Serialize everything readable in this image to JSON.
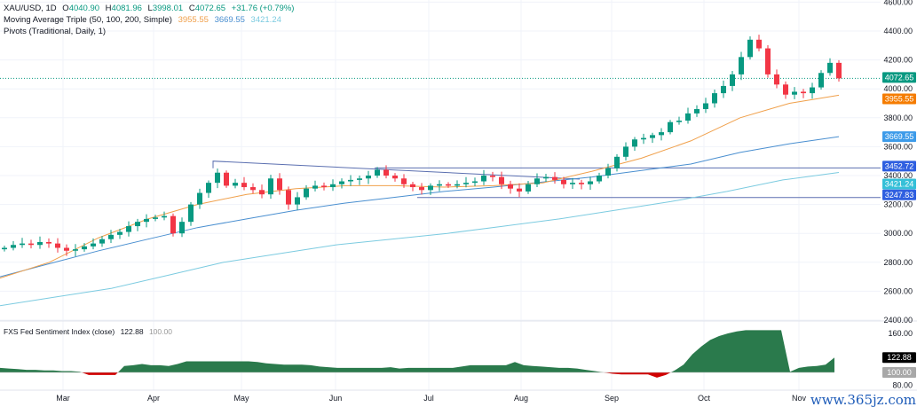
{
  "header": {
    "symbol": "XAU/USD, 1D",
    "o_label": "O",
    "o": "4040.90",
    "h_label": "H",
    "h": "4081.96",
    "l_label": "L",
    "l": "3998.01",
    "c_label": "C",
    "c": "4072.65",
    "change": "+31.76 (+0.79%)",
    "ma_title": "Moving Average Triple (50, 100, 200, Simple)",
    "ma50": "3955.55",
    "ma100": "3669.55",
    "ma200": "3421.24",
    "pivots_title": "Pivots (Traditional, Daily, 1)"
  },
  "indicator": {
    "title": "FXS Fed Sentiment Index (close)",
    "value": "122.88",
    "baseline": "100.00"
  },
  "watermark": "www.365jz.com",
  "colors": {
    "up": "#089981",
    "down": "#f23645",
    "ma50": "#f0a04b",
    "ma100": "#4a8fd0",
    "ma200": "#7ccbe0",
    "pivot": "#5b6fb0",
    "area_pos": "#2a7a4c",
    "area_neg": "#d00000"
  },
  "chart_data": [
    {
      "type": "candlestick",
      "title": "XAU/USD, 1D",
      "x_tick_labels": [
        "Mar",
        "Apr",
        "May",
        "Jun",
        "Jul",
        "Aug",
        "Sep",
        "Oct",
        "Nov"
      ],
      "y_tick_labels": [
        "2400.00",
        "2600.00",
        "2800.00",
        "3000.00",
        "3200.00",
        "3400.00",
        "3600.00",
        "3800.00",
        "4000.00",
        "4200.00",
        "4400.00",
        "4600.00"
      ],
      "ylim": [
        2400,
        4600
      ],
      "grid": true,
      "close": [
        2900,
        2920,
        2930,
        2920,
        2940,
        2930,
        2900,
        2880,
        2890,
        2910,
        2930,
        2960,
        2990,
        3010,
        3050,
        3080,
        3100,
        3110,
        3120,
        3000,
        3080,
        3200,
        3280,
        3350,
        3420,
        3330,
        3350,
        3320,
        3300,
        3270,
        3380,
        3300,
        3200,
        3250,
        3310,
        3330,
        3320,
        3340,
        3360,
        3370,
        3380,
        3400,
        3440,
        3400,
        3380,
        3340,
        3320,
        3300,
        3330,
        3340,
        3330,
        3340,
        3350,
        3360,
        3400,
        3390,
        3340,
        3310,
        3290,
        3340,
        3380,
        3390,
        3370,
        3340,
        3350,
        3340,
        3360,
        3400,
        3450,
        3530,
        3600,
        3650,
        3660,
        3680,
        3700,
        3770,
        3780,
        3830,
        3860,
        3900,
        3970,
        4020,
        4100,
        4220,
        4340,
        4280,
        4100,
        4030,
        3960,
        3980,
        3970,
        4010,
        4110,
        4180,
        4072.65
      ],
      "last_price": "4072.65",
      "moving_averages": [
        {
          "name": "MA50",
          "last": "3955.55",
          "values": [
            2690,
            2800,
            2970,
            3100,
            3200,
            3270,
            3310,
            3330,
            3330,
            3320,
            3330,
            3350,
            3430,
            3520,
            3640,
            3800,
            3900,
            3955.55
          ]
        },
        {
          "name": "MA100",
          "last": "3669.55",
          "values": [
            2700,
            2790,
            2880,
            2960,
            3040,
            3100,
            3160,
            3210,
            3250,
            3290,
            3320,
            3355,
            3390,
            3435,
            3480,
            3560,
            3620,
            3669.55
          ]
        },
        {
          "name": "MA200",
          "last": "3421.24",
          "values": [
            2500,
            2560,
            2620,
            2710,
            2800,
            2860,
            2920,
            2960,
            3000,
            3050,
            3100,
            3160,
            3220,
            3290,
            3370,
            3421.24
          ]
        }
      ],
      "pivots": [
        {
          "label": "3452.72",
          "value": 3452.72
        },
        {
          "label": "3247.83",
          "value": 3247.83
        }
      ],
      "trendline": {
        "from": 3500,
        "to": 3400
      }
    },
    {
      "type": "area",
      "title": "FXS Fed Sentiment Index (close)",
      "y_tick_labels": [
        "80.00",
        "160.00"
      ],
      "ylim": [
        80,
        170
      ],
      "baseline": 100,
      "values": [
        107,
        106,
        105,
        104,
        104,
        103,
        103,
        102,
        102,
        101,
        96,
        96,
        96,
        96,
        110,
        111,
        113,
        111,
        111,
        110,
        113,
        117,
        117,
        117,
        117,
        117,
        117,
        117,
        117,
        116,
        114,
        113,
        112,
        112,
        112,
        111,
        109,
        108,
        107,
        107,
        107,
        107,
        107,
        107,
        108,
        106,
        107,
        107,
        107,
        107,
        107,
        107,
        109,
        111,
        111,
        111,
        111,
        111,
        116,
        111,
        110,
        109,
        108,
        107,
        107,
        106,
        104,
        102,
        100,
        98,
        97,
        97,
        97,
        97,
        92,
        96,
        103,
        112,
        128,
        140,
        150,
        156,
        160,
        163,
        165,
        165,
        165,
        165,
        165,
        101,
        107,
        109,
        110,
        112,
        122.88
      ]
    }
  ]
}
